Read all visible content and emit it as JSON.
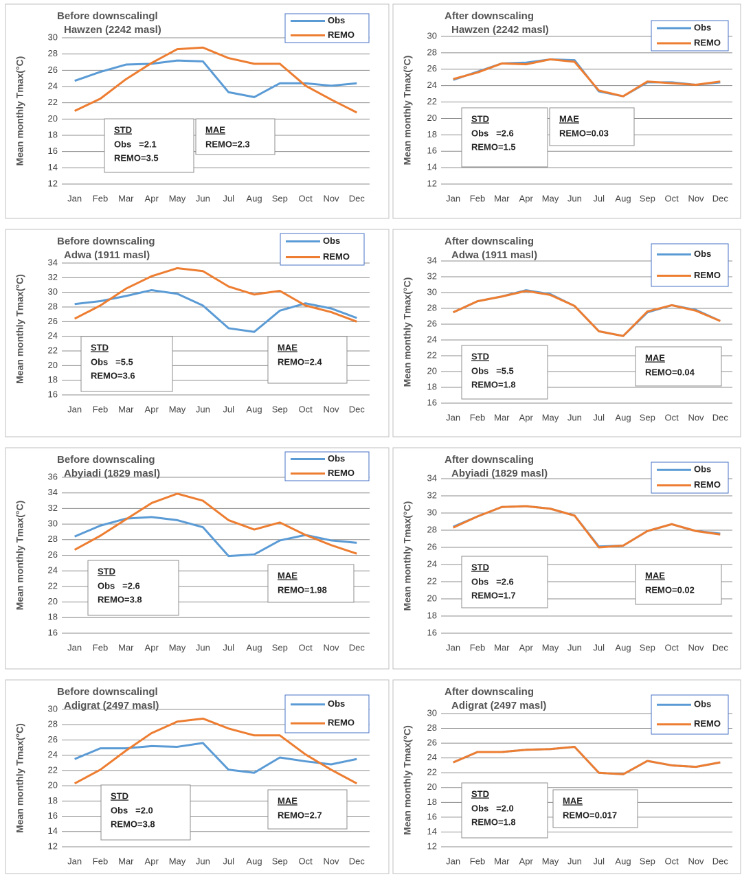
{
  "chart_data": [
    {
      "type": "line",
      "title": "Before downscalingl",
      "subtitle": "Hawzen (2242 masl)",
      "y_label": "Mean monthly Tmax(°C)",
      "categories": [
        "Jan",
        "Feb",
        "Mar",
        "Apr",
        "May",
        "Jun",
        "Jul",
        "Aug",
        "Sep",
        "Oct",
        "Nov",
        "Dec"
      ],
      "ylim": [
        12,
        30
      ],
      "yticks": [
        12,
        14,
        16,
        18,
        20,
        22,
        24,
        26,
        28,
        30
      ],
      "grid": true,
      "series": [
        {
          "name": "Obs",
          "color": "#5b9bd5",
          "values": [
            24.7,
            25.8,
            26.7,
            26.8,
            27.2,
            27.1,
            23.3,
            22.7,
            24.4,
            24.4,
            24.1,
            24.4
          ]
        },
        {
          "name": "REMO",
          "color": "#ed7d31",
          "values": [
            21.0,
            22.5,
            24.9,
            26.9,
            28.6,
            28.8,
            27.5,
            26.8,
            26.8,
            24.1,
            22.4,
            20.8
          ]
        }
      ],
      "std_box": {
        "heading": "STD",
        "lines": [
          "Obs   =2.1",
          "REMO=3.5"
        ]
      },
      "mae_box": {
        "heading": "MAE",
        "lines": [
          "REMO=2.3"
        ]
      }
    },
    {
      "type": "line",
      "title": "After downscaling",
      "subtitle": "Hawzen (2242 masl)",
      "y_label": "Mean monthly Tmax(°C)",
      "categories": [
        "Jan",
        "Feb",
        "Mar",
        "Apr",
        "May",
        "Jun",
        "Jul",
        "Aug",
        "Sep",
        "Oct",
        "Nov",
        "Dec"
      ],
      "ylim": [
        12,
        30
      ],
      "yticks": [
        12,
        14,
        16,
        18,
        20,
        22,
        24,
        26,
        28,
        30
      ],
      "grid": true,
      "series": [
        {
          "name": "Obs",
          "color": "#5b9bd5",
          "values": [
            24.7,
            25.7,
            26.7,
            26.8,
            27.2,
            27.1,
            23.3,
            22.7,
            24.4,
            24.4,
            24.1,
            24.4
          ]
        },
        {
          "name": "REMO",
          "color": "#ed7d31",
          "values": [
            24.8,
            25.6,
            26.7,
            26.6,
            27.2,
            26.9,
            23.4,
            22.7,
            24.5,
            24.3,
            24.1,
            24.5
          ]
        }
      ],
      "std_box": {
        "heading": "STD",
        "lines": [
          "Obs   =2.6",
          "REMO=1.5"
        ]
      },
      "mae_box": {
        "heading": "MAE",
        "lines": [
          "REMO=0.03"
        ]
      }
    },
    {
      "type": "line",
      "title": "Before downscaling",
      "subtitle": "Adwa (1911 masl)",
      "y_label": "Mean monthly Tmax(°C)",
      "categories": [
        "Jan",
        "Feb",
        "Mar",
        "Apr",
        "May",
        "Jun",
        "Jul",
        "Aug",
        "Sep",
        "Oct",
        "Nov",
        "Dec"
      ],
      "ylim": [
        16,
        34
      ],
      "yticks": [
        16,
        18,
        20,
        22,
        24,
        26,
        28,
        30,
        32,
        34
      ],
      "grid": true,
      "series": [
        {
          "name": "Obs",
          "color": "#5b9bd5",
          "values": [
            28.4,
            28.8,
            29.5,
            30.3,
            29.8,
            28.2,
            25.1,
            24.6,
            27.5,
            28.5,
            27.8,
            26.5
          ]
        },
        {
          "name": "REMO",
          "color": "#ed7d31",
          "values": [
            26.4,
            28.2,
            30.5,
            32.2,
            33.3,
            32.9,
            30.8,
            29.7,
            30.2,
            28.2,
            27.3,
            26.0
          ]
        }
      ],
      "std_box": {
        "heading": "STD",
        "lines": [
          "Obs   =5.5",
          "REMO=3.6"
        ]
      },
      "mae_box": {
        "heading": "MAE",
        "lines": [
          "REMO=2.4"
        ]
      }
    },
    {
      "type": "line",
      "title": "After downscaling",
      "subtitle": "Adwa (1911 masl)",
      "y_label": "Mean monthly Tmax(°C)",
      "categories": [
        "Jan",
        "Feb",
        "Mar",
        "Apr",
        "May",
        "Jun",
        "Jul",
        "Aug",
        "Sep",
        "Oct",
        "Nov",
        "Dec"
      ],
      "ylim": [
        16,
        34
      ],
      "yticks": [
        16,
        18,
        20,
        22,
        24,
        26,
        28,
        30,
        32,
        34
      ],
      "grid": true,
      "series": [
        {
          "name": "Obs",
          "color": "#5b9bd5",
          "values": [
            27.5,
            28.9,
            29.5,
            30.3,
            29.8,
            28.3,
            25.1,
            24.5,
            27.5,
            28.4,
            27.8,
            26.4
          ]
        },
        {
          "name": "REMO",
          "color": "#ed7d31",
          "values": [
            27.5,
            28.9,
            29.5,
            30.2,
            29.7,
            28.3,
            25.1,
            24.5,
            27.6,
            28.4,
            27.7,
            26.4
          ]
        }
      ],
      "std_box": {
        "heading": "STD",
        "lines": [
          "Obs   =5.5",
          "REMO=1.8"
        ]
      },
      "mae_box": {
        "heading": "MAE",
        "lines": [
          "REMO=0.04"
        ]
      }
    },
    {
      "type": "line",
      "title": "Before downscaling",
      "subtitle": "Abyiadi (1829 masl)",
      "y_label": "Mean monthly Tmax(°C)",
      "categories": [
        "Jan",
        "Feb",
        "Mar",
        "Apr",
        "May",
        "Jun",
        "Jul",
        "Aug",
        "Sep",
        "Oct",
        "Nov",
        "Dec"
      ],
      "ylim": [
        16,
        36
      ],
      "yticks": [
        16,
        18,
        20,
        22,
        24,
        26,
        28,
        30,
        32,
        34,
        36
      ],
      "grid": true,
      "series": [
        {
          "name": "Obs",
          "color": "#5b9bd5",
          "values": [
            28.4,
            29.8,
            30.7,
            30.9,
            30.5,
            29.6,
            25.9,
            26.1,
            27.9,
            28.6,
            27.9,
            27.6
          ]
        },
        {
          "name": "REMO",
          "color": "#ed7d31",
          "values": [
            26.7,
            28.5,
            30.6,
            32.7,
            33.9,
            33.0,
            30.5,
            29.3,
            30.2,
            28.6,
            27.3,
            26.2
          ]
        }
      ],
      "std_box": {
        "heading": "STD",
        "lines": [
          "Obs   =2.6",
          "REMO=3.8"
        ]
      },
      "mae_box": {
        "heading": "MAE",
        "lines": [
          "REMO=1.98"
        ]
      }
    },
    {
      "type": "line",
      "title": "After downscaling",
      "subtitle": "Abyiadi (1829 masl)",
      "y_label": "Mean monthly Tmax(°C)",
      "categories": [
        "Jan",
        "Feb",
        "Mar",
        "Apr",
        "May",
        "Jun",
        "Jul",
        "Aug",
        "Sep",
        "Oct",
        "Nov",
        "Dec"
      ],
      "ylim": [
        16,
        34
      ],
      "yticks": [
        16,
        18,
        20,
        22,
        24,
        26,
        28,
        30,
        32,
        34
      ],
      "grid": true,
      "series": [
        {
          "name": "Obs",
          "color": "#5b9bd5",
          "values": [
            28.4,
            29.6,
            30.7,
            30.8,
            30.5,
            29.7,
            26.1,
            26.2,
            27.9,
            28.7,
            27.9,
            27.6
          ]
        },
        {
          "name": "REMO",
          "color": "#ed7d31",
          "values": [
            28.3,
            29.6,
            30.7,
            30.8,
            30.5,
            29.7,
            26.0,
            26.2,
            27.9,
            28.7,
            27.9,
            27.5
          ]
        }
      ],
      "std_box": {
        "heading": "STD",
        "lines": [
          "Obs   =2.6",
          "REMO=1.7"
        ]
      },
      "mae_box": {
        "heading": "MAE",
        "lines": [
          "REMO=0.02"
        ]
      }
    },
    {
      "type": "line",
      "title": "Before downscalingl",
      "subtitle": "Adigrat (2497 masl)",
      "y_label": "Mean monthly Tmax(°C)",
      "categories": [
        "Jan",
        "Feb",
        "Mar",
        "Apr",
        "May",
        "Jun",
        "Jul",
        "Aug",
        "Sep",
        "Oct",
        "Nov",
        "Dec"
      ],
      "ylim": [
        12,
        30
      ],
      "yticks": [
        12,
        14,
        16,
        18,
        20,
        22,
        24,
        26,
        28,
        30
      ],
      "grid": true,
      "series": [
        {
          "name": "Obs",
          "color": "#5b9bd5",
          "values": [
            23.5,
            24.9,
            24.9,
            25.2,
            25.1,
            25.6,
            22.1,
            21.7,
            23.7,
            23.2,
            22.8,
            23.5
          ]
        },
        {
          "name": "REMO",
          "color": "#ed7d31",
          "values": [
            20.3,
            22.1,
            24.6,
            26.9,
            28.4,
            28.8,
            27.5,
            26.6,
            26.6,
            24.1,
            22.1,
            20.3
          ]
        }
      ],
      "std_box": {
        "heading": "STD",
        "lines": [
          "Obs   =2.0",
          "REMO=3.8"
        ]
      },
      "mae_box": {
        "heading": "MAE",
        "lines": [
          "REMO=2.7"
        ]
      }
    },
    {
      "type": "line",
      "title": "After downscaling",
      "subtitle": "Adigrat (2497 masl)",
      "y_label": "Mean monthly Tmax(°C)",
      "categories": [
        "Jan",
        "Feb",
        "Mar",
        "Apr",
        "May",
        "Jun",
        "Jul",
        "Aug",
        "Sep",
        "Oct",
        "Nov",
        "Dec"
      ],
      "ylim": [
        12,
        30
      ],
      "yticks": [
        12,
        14,
        16,
        18,
        20,
        22,
        24,
        26,
        28,
        30
      ],
      "grid": true,
      "series": [
        {
          "name": "Obs",
          "color": "#5b9bd5",
          "values": [
            23.4,
            24.8,
            24.8,
            25.1,
            25.2,
            25.5,
            22.0,
            21.8,
            23.6,
            23.0,
            22.8,
            23.4
          ]
        },
        {
          "name": "REMO",
          "color": "#ed7d31",
          "values": [
            23.4,
            24.8,
            24.8,
            25.1,
            25.2,
            25.5,
            22.0,
            21.8,
            23.6,
            23.0,
            22.8,
            23.4
          ]
        }
      ],
      "std_box": {
        "heading": "STD",
        "lines": [
          "Obs   =2.0",
          "REMO=1.8"
        ]
      },
      "mae_box": {
        "heading": "MAE",
        "lines": [
          "REMO=0.017"
        ]
      }
    }
  ]
}
